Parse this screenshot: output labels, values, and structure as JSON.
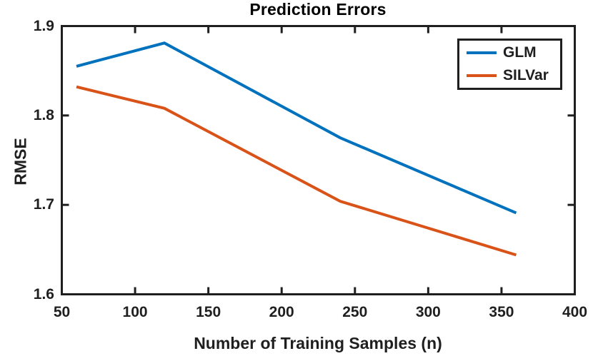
{
  "chart_data": {
    "type": "line",
    "title": "Prediction Errors",
    "xlabel": "Number of Training Samples (n)",
    "ylabel": "RMSE",
    "xlim": [
      50,
      400
    ],
    "ylim": [
      1.6,
      1.9
    ],
    "x_ticks": [
      50,
      100,
      150,
      200,
      250,
      300,
      350,
      400
    ],
    "x_tick_labels": [
      "50",
      "100",
      "150",
      "200",
      "250",
      "300",
      "350",
      "400"
    ],
    "y_ticks": [
      1.6,
      1.7,
      1.8,
      1.9
    ],
    "y_tick_labels": [
      "1.6",
      "1.7",
      "1.8",
      "1.9"
    ],
    "grid": false,
    "legend_position": "top-right",
    "axis_color": "#1f1f1f",
    "x": [
      60,
      120,
      240,
      360
    ],
    "series": [
      {
        "name": "GLM",
        "color": "#0072BD",
        "values": [
          1.855,
          1.881,
          1.775,
          1.691
        ]
      },
      {
        "name": "SILVar",
        "color": "#D95319",
        "values": [
          1.832,
          1.808,
          1.704,
          1.644
        ]
      }
    ]
  }
}
